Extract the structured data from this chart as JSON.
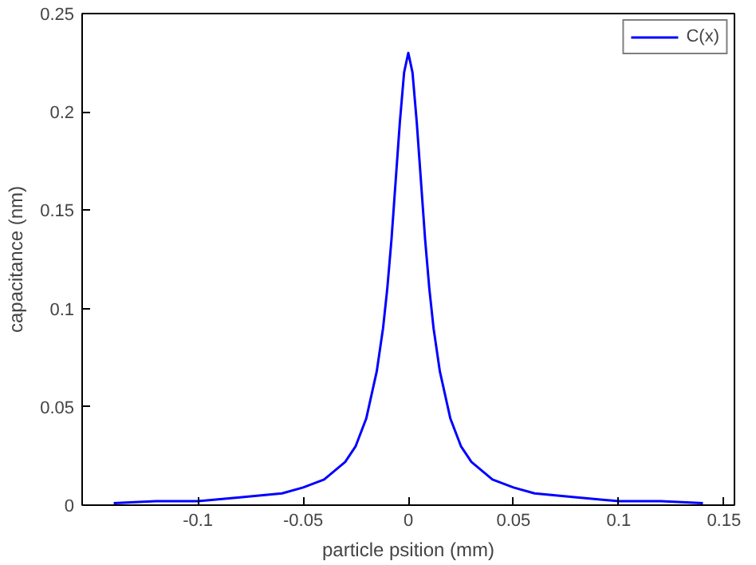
{
  "chart_data": {
    "type": "line",
    "xlabel": "particle psition (mm)",
    "ylabel": "capacitance (nm)",
    "x": [
      -0.14,
      -0.12,
      -0.1,
      -0.08,
      -0.06,
      -0.05,
      -0.04,
      -0.03,
      -0.025,
      -0.02,
      -0.015,
      -0.012,
      -0.01,
      -0.008,
      -0.006,
      -0.004,
      -0.002,
      0,
      0.002,
      0.004,
      0.006,
      0.008,
      0.01,
      0.012,
      0.015,
      0.02,
      0.025,
      0.03,
      0.04,
      0.05,
      0.06,
      0.08,
      0.1,
      0.12,
      0.14
    ],
    "series": [
      {
        "name": "C(x)",
        "color": "#0000ff",
        "values": [
          0.001,
          0.002,
          0.002,
          0.004,
          0.006,
          0.009,
          0.013,
          0.022,
          0.03,
          0.044,
          0.068,
          0.09,
          0.11,
          0.135,
          0.165,
          0.195,
          0.22,
          0.23,
          0.22,
          0.195,
          0.165,
          0.135,
          0.11,
          0.09,
          0.068,
          0.044,
          0.03,
          0.022,
          0.013,
          0.009,
          0.006,
          0.004,
          0.002,
          0.002,
          0.001
        ]
      }
    ],
    "xlim": [
      -0.155,
      0.155
    ],
    "xticks": [
      -0.1,
      -0.05,
      0,
      0.05,
      0.1,
      0.15
    ],
    "ylim": [
      0,
      0.25
    ],
    "yticks": [
      0,
      0.05,
      0.1,
      0.15,
      0.2,
      0.25
    ],
    "grid": false,
    "legend": "top right",
    "line_style": "solid"
  }
}
